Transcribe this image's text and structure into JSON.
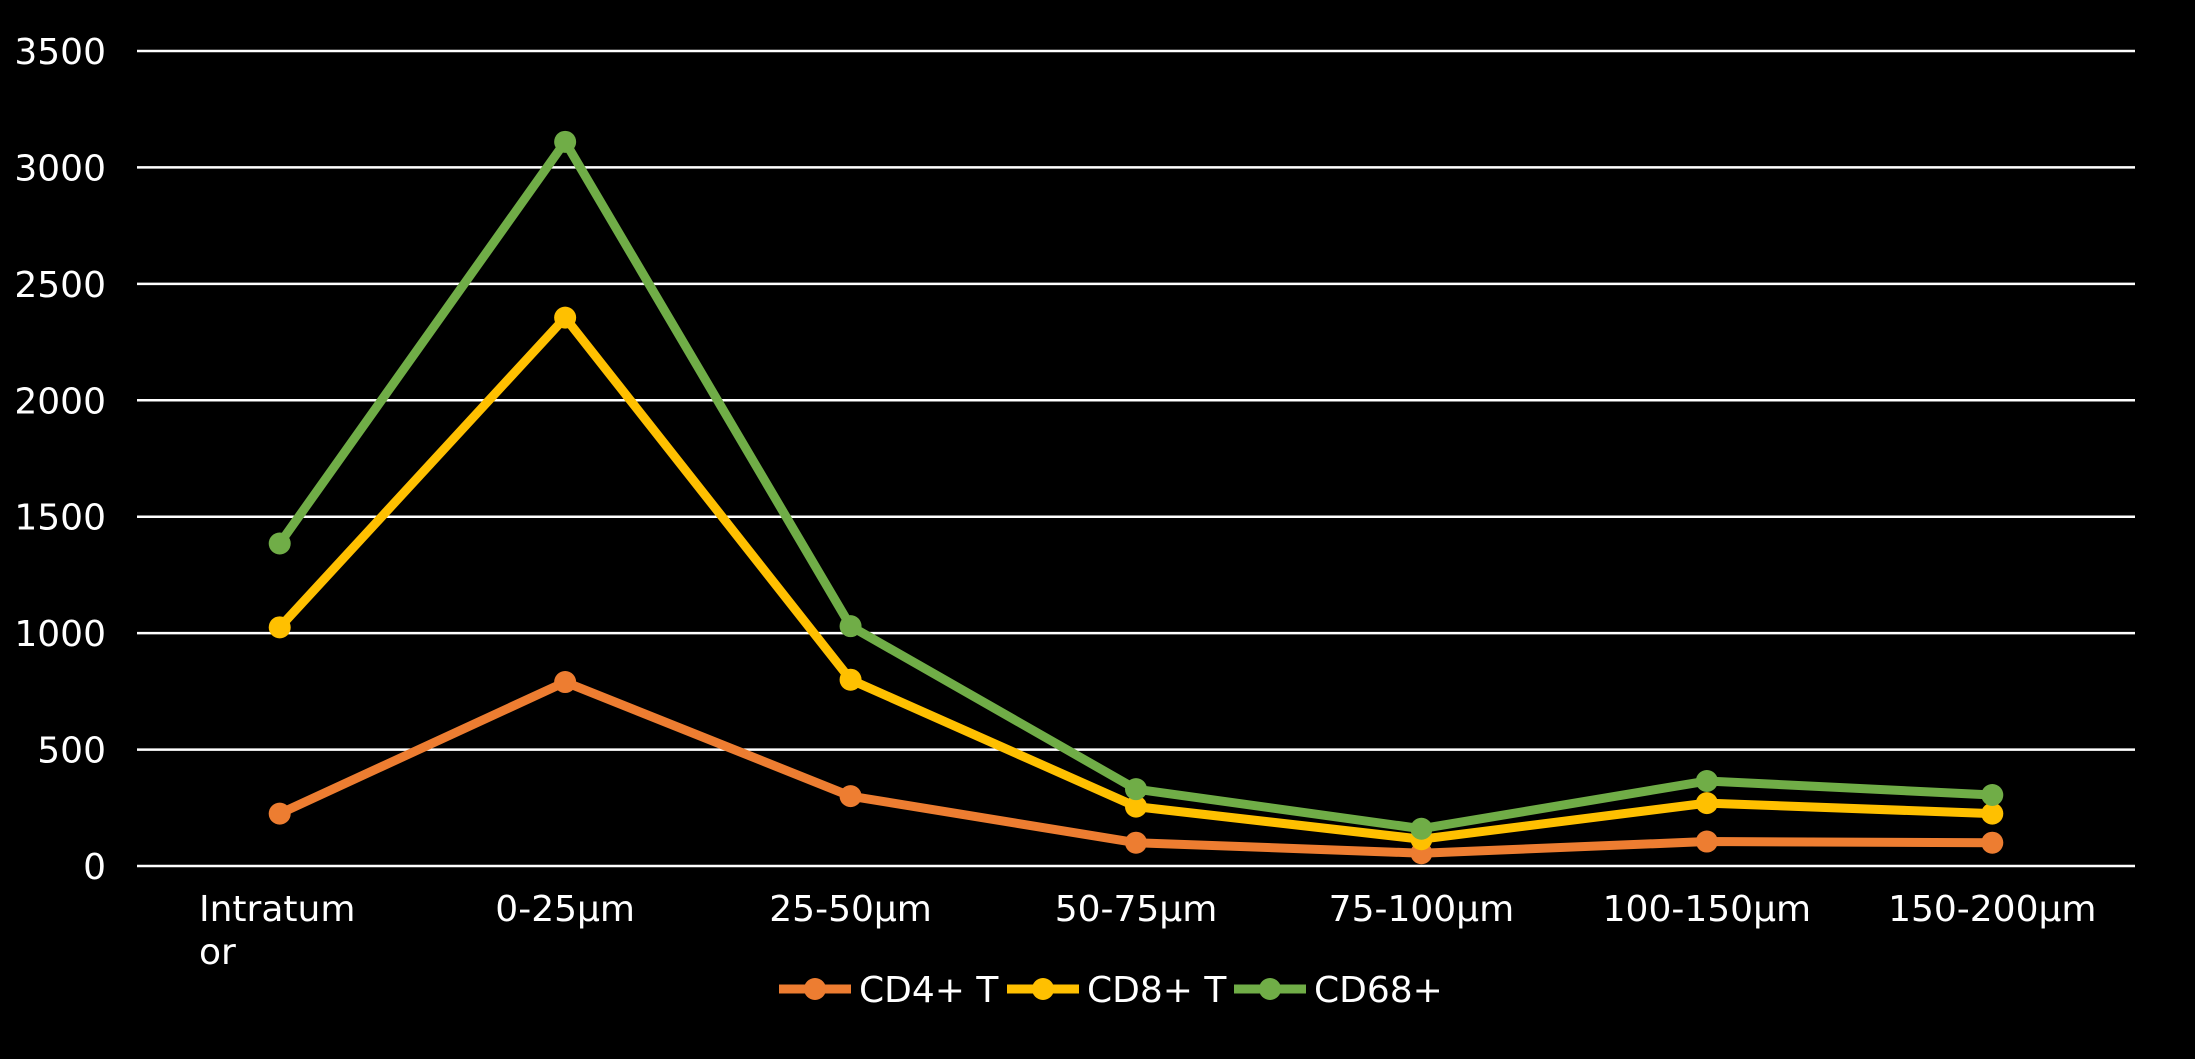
{
  "chart_data": {
    "type": "line",
    "categories": [
      "Intratum or",
      "0-25μm",
      "25-50μm",
      "50-75μm",
      "75-100μm",
      "100-150μm",
      "150-200μm"
    ],
    "series": [
      {
        "name": "CD4+ T",
        "color": "#ED7D31",
        "values": [
          225,
          790,
          300,
          100,
          55,
          105,
          100
        ]
      },
      {
        "name": "CD8+ T",
        "color": "#FFC000",
        "values": [
          1025,
          2355,
          800,
          255,
          115,
          270,
          225
        ]
      },
      {
        "name": "CD68+",
        "color": "#70AD47",
        "values": [
          1385,
          3110,
          1030,
          330,
          160,
          365,
          305
        ]
      }
    ],
    "yticks": [
      "0",
      "500",
      "1000",
      "1500",
      "2000",
      "2500",
      "3000",
      "3500"
    ],
    "ylim": [
      0,
      3500
    ],
    "grid": true,
    "legend_position": "bottom",
    "background": "#000000",
    "gridline_color": "#ffffff"
  }
}
